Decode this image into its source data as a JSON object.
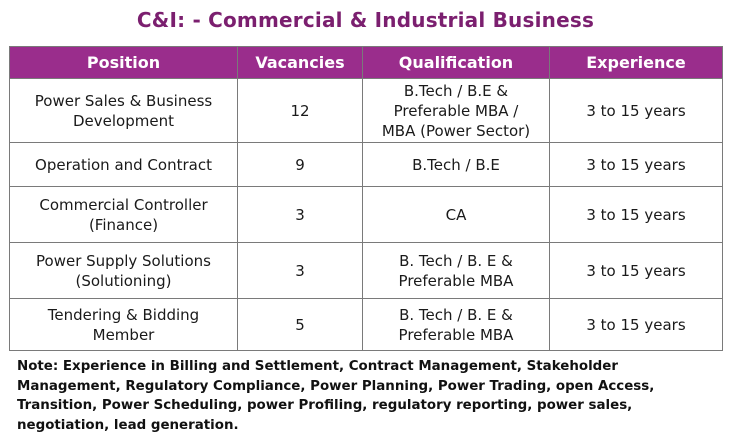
{
  "title": "C&I: - Commercial & Industrial Business",
  "colors": {
    "title": "#7b1f6f",
    "header_bg": "#9a2d8c",
    "header_text": "#ffffff",
    "border": "#7a7a7a"
  },
  "table": {
    "headers": [
      "Position",
      "Vacancies",
      "Qualification",
      "Experience"
    ],
    "rows": [
      {
        "position": "Power Sales & Business\nDevelopment",
        "vacancies": "12",
        "qualification": "B.Tech / B.E &\nPreferable MBA /\nMBA (Power Sector)",
        "experience": "3 to 15 years"
      },
      {
        "position": "Operation and Contract",
        "vacancies": "9",
        "qualification": "B.Tech / B.E",
        "experience": "3 to 15 years"
      },
      {
        "position": "Commercial Controller\n(Finance)",
        "vacancies": "3",
        "qualification": "CA",
        "experience": "3 to 15 years"
      },
      {
        "position": "Power Supply Solutions\n(Solutioning)",
        "vacancies": "3",
        "qualification": "B. Tech / B. E &\nPreferable MBA",
        "experience": "3 to 15 years"
      },
      {
        "position": "Tendering & Bidding\nMember",
        "vacancies": "5",
        "qualification": "B. Tech / B. E &\nPreferable MBA",
        "experience": "3 to 15 years"
      }
    ]
  },
  "note": "Note: Experience in Billing and Settlement, Contract Management, Stakeholder Management, Regulatory Compliance, Power Planning, Power Trading, open Access, Transition, Power Scheduling, power Profiling, regulatory reporting, power sales, negotiation, lead generation."
}
